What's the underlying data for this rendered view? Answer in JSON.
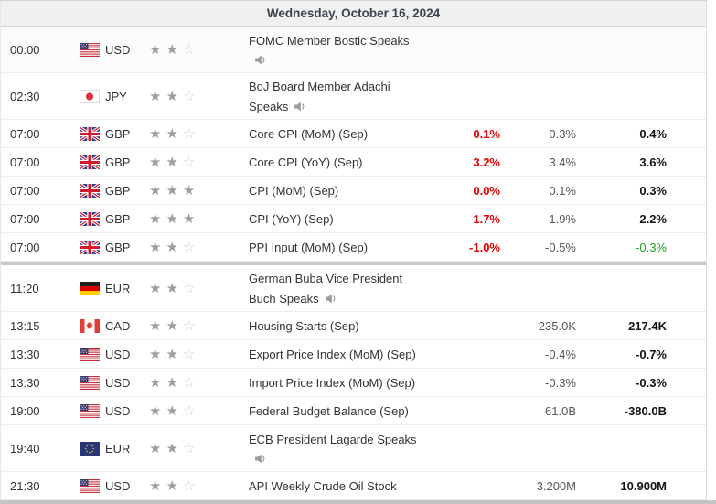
{
  "header": {
    "date": "Wednesday, October 16, 2024"
  },
  "colors": {
    "actual_value": "#e00000",
    "revised_previous": "#21a121",
    "filled_star": "#9e9e9e",
    "header_background": "#f0f0f1"
  },
  "icons": {
    "speaker": "speaker-icon",
    "star_filled": "★",
    "star_empty": "☆"
  },
  "rows": [
    {
      "time": "00:00",
      "currency": "USD",
      "flag": "us",
      "stars": 2,
      "event_l1": "FOMC Member Bostic Speaks",
      "event_l2": "",
      "speech": true,
      "highlight": true
    },
    {
      "time": "02:30",
      "currency": "JPY",
      "flag": "jp",
      "stars": 2,
      "event_l1": "BoJ Board Member Adachi",
      "event_l2": "Speaks",
      "speech": true
    },
    {
      "time": "07:00",
      "currency": "GBP",
      "flag": "gb",
      "stars": 2,
      "event_l1": "Core CPI (MoM) (Sep)",
      "actual": "0.1%",
      "forecast": "0.3%",
      "previous": "0.4%"
    },
    {
      "time": "07:00",
      "currency": "GBP",
      "flag": "gb",
      "stars": 2,
      "event_l1": "Core CPI (YoY) (Sep)",
      "actual": "3.2%",
      "forecast": "3.4%",
      "previous": "3.6%"
    },
    {
      "time": "07:00",
      "currency": "GBP",
      "flag": "gb",
      "stars": 3,
      "event_l1": "CPI (MoM) (Sep)",
      "actual": "0.0%",
      "forecast": "0.1%",
      "previous": "0.3%"
    },
    {
      "time": "07:00",
      "currency": "GBP",
      "flag": "gb",
      "stars": 3,
      "event_l1": "CPI (YoY) (Sep)",
      "actual": "1.7%",
      "forecast": "1.9%",
      "previous": "2.2%"
    },
    {
      "time": "07:00",
      "currency": "GBP",
      "flag": "gb",
      "stars": 2,
      "event_l1": "PPI Input (MoM) (Sep)",
      "actual": "-1.0%",
      "forecast": "-0.5%",
      "previous": "-0.3%",
      "previous_revised": true,
      "divider_after": true
    },
    {
      "time": "11:20",
      "currency": "EUR",
      "flag": "de",
      "stars": 2,
      "event_l1": "German Buba Vice President",
      "event_l2": "Buch Speaks",
      "speech": true
    },
    {
      "time": "13:15",
      "currency": "CAD",
      "flag": "ca",
      "stars": 2,
      "event_l1": "Housing Starts (Sep)",
      "forecast": "235.0K",
      "previous": "217.4K"
    },
    {
      "time": "13:30",
      "currency": "USD",
      "flag": "us",
      "stars": 2,
      "event_l1": "Export Price Index (MoM) (Sep)",
      "forecast": "-0.4%",
      "previous": "-0.7%"
    },
    {
      "time": "13:30",
      "currency": "USD",
      "flag": "us",
      "stars": 2,
      "event_l1": "Import Price Index (MoM) (Sep)",
      "forecast": "-0.3%",
      "previous": "-0.3%"
    },
    {
      "time": "19:00",
      "currency": "USD",
      "flag": "us",
      "stars": 2,
      "event_l1": "Federal Budget Balance (Sep)",
      "forecast": "61.0B",
      "previous": "-380.0B"
    },
    {
      "time": "19:40",
      "currency": "EUR",
      "flag": "eu",
      "stars": 2,
      "event_l1": "ECB President Lagarde Speaks",
      "event_l2": "",
      "speech": true
    },
    {
      "time": "21:30",
      "currency": "USD",
      "flag": "us",
      "stars": 2,
      "event_l1": "API Weekly Crude Oil Stock",
      "forecast": "3.200M",
      "previous": "10.900M"
    }
  ]
}
